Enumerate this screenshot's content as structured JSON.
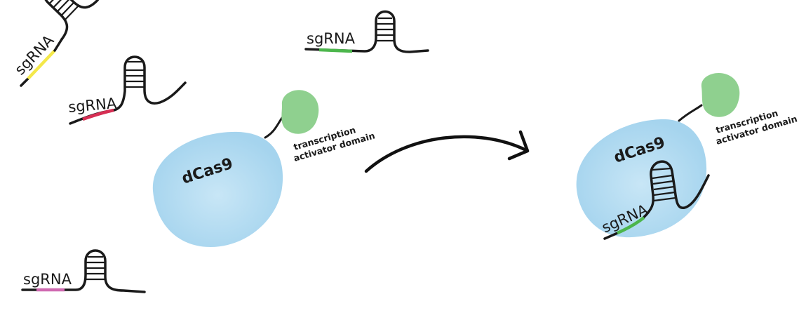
{
  "labels": {
    "sgrna": "sgRNA",
    "dcas9": "dCas9",
    "tad_line1": "transcription",
    "tad_line2": "activator domain"
  },
  "colors": {
    "dcas9": "#a9d6ef",
    "dcas9_center": "#c6e4f4",
    "activator": "#8fd08f",
    "yellow_guide": "#f4e84a",
    "red_guide": "#d72f54",
    "green_guide": "#4cb64c",
    "magenta_guide": "#d06ab1",
    "strand": "#1a1a1a"
  }
}
